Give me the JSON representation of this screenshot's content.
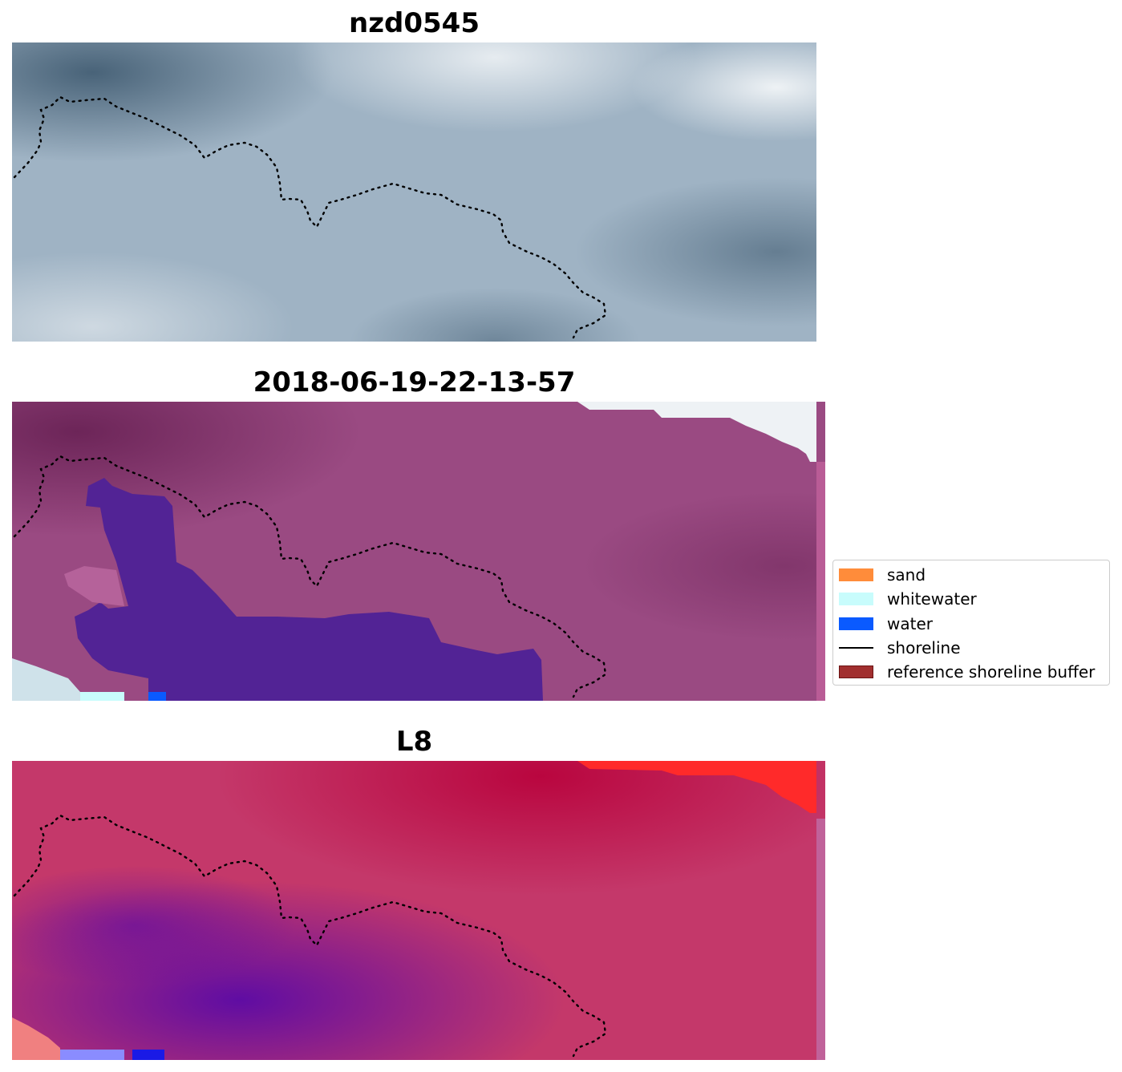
{
  "panels": [
    {
      "title": "nzd0545",
      "style": "rgb",
      "colors": {
        "base": "#9fb3c4",
        "dark": "#3f5a70",
        "light": "#eef2f5"
      }
    },
    {
      "title": "2018-06-19-22-13-57",
      "style": "classified",
      "colors": {
        "base": "#9a4a82",
        "dark": "#6a2356",
        "light": "#eef2f5",
        "water_mask": "#522395"
      }
    },
    {
      "title": "L8",
      "style": "false-color",
      "colors": {
        "base": "#c4386a",
        "dark": "#b8003a",
        "purple": "#5a0aa6",
        "bright": "#ff2a2a"
      }
    }
  ],
  "legend": {
    "items": [
      {
        "label": "sand",
        "type": "patch",
        "color": "#ff8c3a",
        "border": ""
      },
      {
        "label": "whitewater",
        "type": "patch",
        "color": "#c8fcfc",
        "border": ""
      },
      {
        "label": "water",
        "type": "patch",
        "color": "#0a5aff",
        "border": ""
      },
      {
        "label": "shoreline",
        "type": "line",
        "color": "#000000",
        "border": ""
      },
      {
        "label": "reference shoreline buffer",
        "type": "patch",
        "color": "#a12f2f",
        "border": "#6b1414"
      }
    ]
  },
  "shoreline_color": "#000000"
}
